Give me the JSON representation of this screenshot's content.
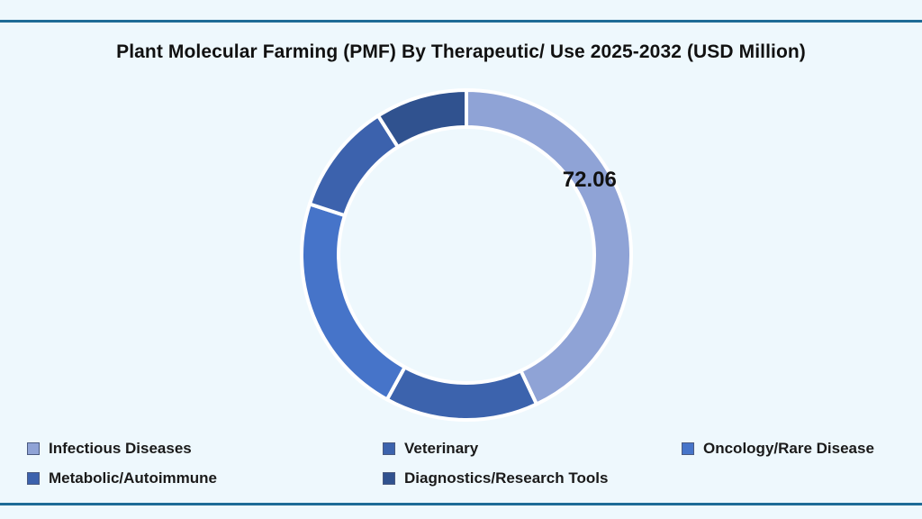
{
  "colors": {
    "background": "#eef8fd",
    "rule": "#1e6b96"
  },
  "chart_data": {
    "type": "pie",
    "style": "donut",
    "title": "Plant Molecular Farming (PMF) By Therapeutic/ Use 2025-2032 (USD Million)",
    "categories": [
      "Infectious Diseases",
      "Veterinary",
      "Oncology/Rare Disease",
      "Metabolic/Autoimmune",
      "Diagnostics/Research Tools"
    ],
    "slice_order": [
      "Infectious Diseases",
      "Veterinary",
      "Oncology/Rare Disease",
      "Metabolic/Autoimmune",
      "Diagnostics/Research Tools"
    ],
    "shares_percent": [
      43,
      15,
      22,
      11,
      9
    ],
    "colors": [
      "#8fa3d6",
      "#3c63ad",
      "#4674c9",
      "#3c62ad",
      "#30528f"
    ],
    "data_labels": [
      {
        "category": "Infectious Diseases",
        "text": "72.06"
      }
    ],
    "legend": {
      "placement": "bottom",
      "entries": [
        {
          "label": "Infectious Diseases",
          "color": "#8fa3d6"
        },
        {
          "label": "Veterinary",
          "color": "#3c63ad"
        },
        {
          "label": "Oncology/Rare Disease",
          "color": "#4674c9"
        },
        {
          "label": "Metabolic/Autoimmune",
          "color": "#3c62ad"
        },
        {
          "label": "Diagnostics/Research Tools",
          "color": "#30528f"
        }
      ]
    }
  }
}
